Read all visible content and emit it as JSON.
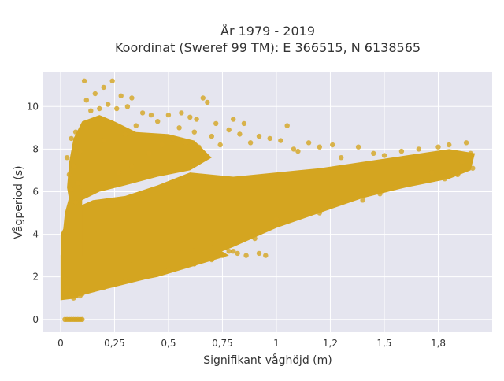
{
  "chart_data": {
    "type": "scatter",
    "title_line1": "År 1979 - 2019",
    "title_line2": "Koordinat (Sweref 99 TM): E 366515, N 6138565",
    "xlabel": "Signifikant våghöjd (m)",
    "ylabel": "Vågperiod (s)",
    "xlim": [
      -0.08,
      2.0
    ],
    "ylim": [
      -0.6,
      11.6
    ],
    "xticks": [
      0,
      0.25,
      0.5,
      0.75,
      1,
      1.25,
      1.5,
      1.75
    ],
    "xtick_labels": [
      "0",
      "0,25",
      "0,5",
      "0,75",
      "1",
      "1,2",
      "1,5",
      "1,8"
    ],
    "yticks": [
      0,
      2,
      4,
      6,
      8,
      10
    ],
    "ytick_labels": [
      "0",
      "2",
      "4",
      "6",
      "8",
      "10"
    ],
    "grid": true,
    "legend": "none",
    "marker_color": "#D4A520",
    "background_color": "#E5E5EF",
    "points": [
      [
        0.12,
        10.3
      ],
      [
        0.16,
        10.6
      ],
      [
        0.2,
        10.9
      ],
      [
        0.11,
        11.2
      ],
      [
        0.24,
        11.2
      ],
      [
        0.28,
        10.5
      ],
      [
        0.33,
        10.4
      ],
      [
        0.31,
        10.0
      ],
      [
        0.22,
        10.1
      ],
      [
        0.18,
        9.9
      ],
      [
        0.14,
        9.8
      ],
      [
        0.26,
        9.9
      ],
      [
        0.38,
        9.7
      ],
      [
        0.42,
        9.6
      ],
      [
        0.5,
        9.6
      ],
      [
        0.56,
        9.7
      ],
      [
        0.6,
        9.5
      ],
      [
        0.66,
        10.4
      ],
      [
        0.68,
        10.2
      ],
      [
        0.63,
        9.4
      ],
      [
        0.72,
        9.2
      ],
      [
        0.8,
        9.4
      ],
      [
        0.85,
        9.2
      ],
      [
        0.92,
        8.6
      ],
      [
        1.05,
        9.1
      ],
      [
        1.02,
        8.4
      ],
      [
        1.08,
        8.0
      ],
      [
        1.15,
        8.3
      ],
      [
        1.2,
        8.1
      ],
      [
        1.26,
        8.2
      ],
      [
        0.05,
        8.5
      ],
      [
        0.07,
        8.8
      ],
      [
        0.09,
        7.9
      ],
      [
        0.03,
        7.6
      ],
      [
        0.06,
        7.2
      ],
      [
        0.04,
        6.8
      ],
      [
        0.08,
        6.4
      ],
      [
        0.1,
        6.0
      ],
      [
        0.05,
        6.1
      ],
      [
        0.07,
        5.5
      ],
      [
        0.12,
        9.0
      ],
      [
        0.2,
        8.4
      ],
      [
        0.3,
        8.7
      ],
      [
        0.35,
        9.1
      ],
      [
        0.45,
        9.3
      ],
      [
        0.55,
        9.0
      ],
      [
        0.62,
        8.8
      ],
      [
        0.7,
        8.6
      ],
      [
        0.78,
        8.9
      ],
      [
        0.83,
        8.7
      ],
      [
        0.27,
        6.9
      ],
      [
        0.33,
        7.2
      ],
      [
        0.41,
        7.8
      ],
      [
        0.47,
        8.2
      ],
      [
        0.52,
        8.5
      ],
      [
        0.58,
        8.3
      ],
      [
        0.64,
        8.1
      ],
      [
        0.74,
        8.2
      ],
      [
        0.88,
        8.3
      ],
      [
        0.97,
        8.5
      ],
      [
        1.1,
        7.9
      ],
      [
        1.3,
        7.6
      ],
      [
        1.38,
        8.1
      ],
      [
        1.45,
        7.8
      ],
      [
        1.5,
        7.7
      ],
      [
        1.58,
        7.9
      ],
      [
        1.66,
        8.0
      ],
      [
        1.75,
        8.1
      ],
      [
        1.8,
        8.2
      ],
      [
        1.88,
        8.3
      ],
      [
        1.9,
        7.8
      ],
      [
        1.86,
        7.4
      ],
      [
        1.91,
        7.1
      ],
      [
        1.84,
        6.8
      ],
      [
        1.78,
        6.6
      ],
      [
        1.72,
        6.9
      ],
      [
        1.67,
        6.5
      ],
      [
        1.6,
        6.4
      ],
      [
        1.55,
        6.2
      ],
      [
        1.48,
        5.9
      ],
      [
        1.2,
        5.0
      ],
      [
        1.3,
        5.5
      ],
      [
        1.4,
        5.6
      ],
      [
        1.0,
        4.7
      ],
      [
        0.9,
        3.8
      ],
      [
        0.8,
        3.2
      ],
      [
        0.75,
        3.0
      ],
      [
        0.7,
        2.8
      ],
      [
        0.62,
        2.6
      ],
      [
        0.5,
        2.3
      ],
      [
        0.4,
        2.0
      ],
      [
        0.3,
        1.8
      ],
      [
        0.2,
        1.5
      ],
      [
        0.1,
        1.2
      ],
      [
        0.05,
        1.1
      ],
      [
        0.03,
        1.5
      ],
      [
        0.02,
        1.9
      ],
      [
        0.02,
        1.3
      ],
      [
        0.06,
        1.0
      ],
      [
        0.09,
        1.1
      ],
      [
        0.78,
        3.2
      ],
      [
        0.82,
        3.1
      ],
      [
        0.86,
        3.0
      ],
      [
        0.92,
        3.1
      ],
      [
        0.95,
        3.0
      ]
    ],
    "zero_points_x": [
      0.02,
      0.03,
      0.04,
      0.05,
      0.06,
      0.07,
      0.08,
      0.09,
      0.1
    ]
  }
}
